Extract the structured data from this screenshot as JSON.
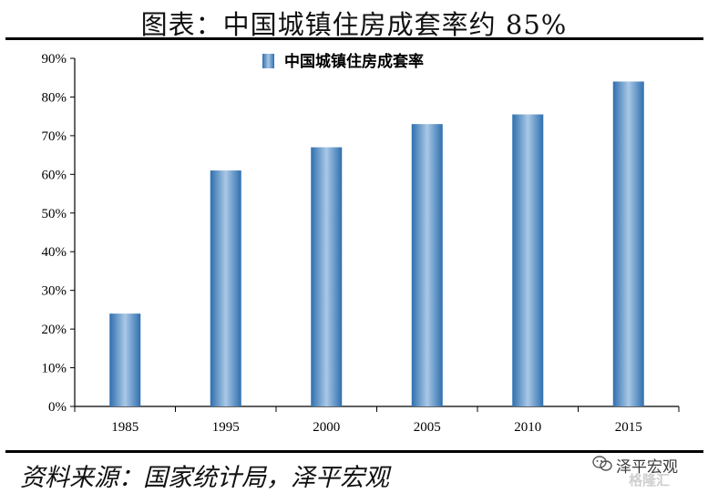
{
  "title": "图表：中国城镇住房成套率约 85%",
  "source": "资料来源：国家统计局，泽平宏观",
  "watermark": {
    "brand": "泽平宏观",
    "sub": "格隆汇"
  },
  "colors": {
    "bar_dark": "#2f6fae",
    "bar_light": "#a9c8e6",
    "axis": "#000000"
  },
  "chart_data": {
    "type": "bar",
    "categories": [
      "1985",
      "1995",
      "2000",
      "2005",
      "2010",
      "2015"
    ],
    "series": [
      {
        "name": "中国城镇住房成套率",
        "values": [
          24,
          61,
          67,
          73,
          75.5,
          84
        ]
      }
    ],
    "yticks": [
      "0%",
      "10%",
      "20%",
      "30%",
      "40%",
      "50%",
      "60%",
      "70%",
      "80%",
      "90%"
    ],
    "ylim": [
      0,
      90
    ],
    "grid": false,
    "legend": "top-center"
  }
}
